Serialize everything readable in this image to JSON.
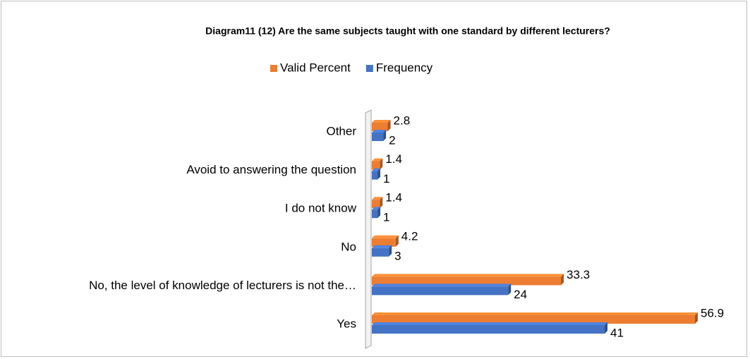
{
  "chart_data": {
    "type": "bar",
    "orientation": "horizontal",
    "title": "Diagram11 (12)  Are the same subjects taught with one standard by different lecturers?",
    "categories": [
      "Other",
      "Avoid to answering  the question",
      "I do not know",
      "No",
      "No, the level of knowledge of lecturers is not the…",
      "Yes"
    ],
    "series": [
      {
        "name": "Valid Percent",
        "color": "#ed7d31",
        "values": [
          2.8,
          1.4,
          1.4,
          4.2,
          33.3,
          56.9
        ]
      },
      {
        "name": "Frequency",
        "color": "#4472c4",
        "values": [
          2,
          1,
          1,
          3,
          24,
          41
        ]
      }
    ],
    "legend": "top"
  }
}
